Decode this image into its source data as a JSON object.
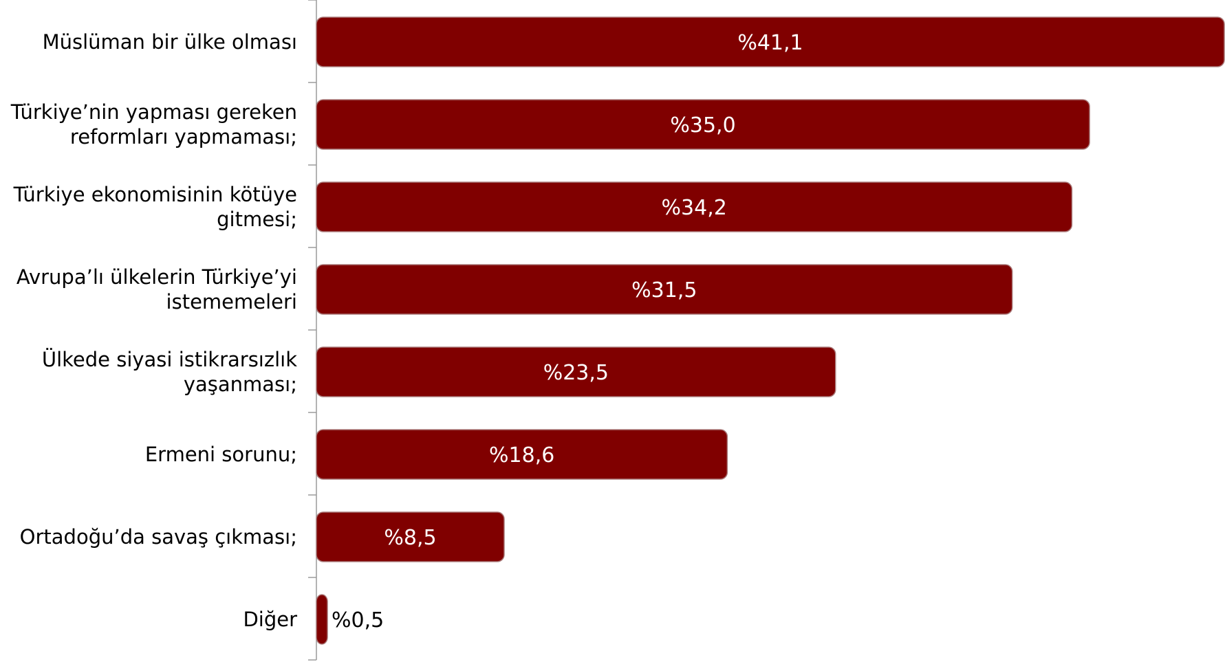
{
  "chart_data": {
    "type": "bar",
    "orientation": "horizontal",
    "title": "",
    "xlabel": "",
    "ylabel": "",
    "xlim": [
      0,
      41.1
    ],
    "grid": false,
    "legend": "none",
    "categories": [
      [
        "Müslüman bir ülke olması"
      ],
      [
        "Türkiye’nin yapması gereken",
        "reformları yapmaması;"
      ],
      [
        "Türkiye ekonomisinin kötüye",
        "gitmesi;"
      ],
      [
        "Avrupa’lı ülkelerin Türkiye’yi",
        "istememeleri"
      ],
      [
        "Ülkede siyasi istikrarsızlık",
        "yaşanması;"
      ],
      [
        "Ermeni sorunu;"
      ],
      [
        "Ortadoğu’da savaş çıkması;"
      ],
      [
        "Diğer"
      ]
    ],
    "values": [
      41.1,
      35.0,
      34.2,
      31.5,
      23.5,
      18.6,
      8.5,
      0.5
    ],
    "data_labels": [
      "%41,1",
      "%35,0",
      "%34,2",
      "%31,5",
      "%23,5",
      "%18,6",
      "%8,5",
      "%0,5"
    ],
    "colors": {
      "bar": "#800000",
      "bar_edge": "#a87878",
      "axis": "#9a9a9a",
      "label_inside": "#ffffff",
      "label_outside": "#000000"
    }
  }
}
